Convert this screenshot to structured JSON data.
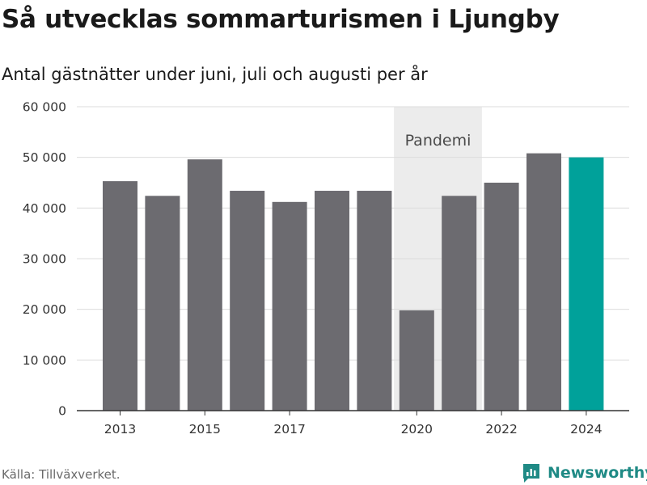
{
  "title": "Så utvecklas sommarturismen i Ljungby",
  "subtitle": "Antal gästnätter under juni, juli och augusti per år",
  "source": "Källa: Tillväxverket.",
  "logo": {
    "text": "Newsworthy",
    "color": "#1f8a85",
    "icon": "newsworthy-chart-icon"
  },
  "colors": {
    "bar": "#6c6b70",
    "highlight": "#00a19a",
    "band": "#ececec",
    "grid": "#dcdcdc",
    "axis": "#333333"
  },
  "chart_data": {
    "type": "bar",
    "title": "Så utvecklas sommarturismen i Ljungby",
    "subtitle": "Antal gästnätter under juni, juli och augusti per år",
    "categories": [
      "2013",
      "2014",
      "2015",
      "2016",
      "2017",
      "2018",
      "2019",
      "2020",
      "2021",
      "2022",
      "2023",
      "2024"
    ],
    "values": [
      45300,
      42400,
      49600,
      43400,
      41200,
      43400,
      43400,
      19800,
      42400,
      45000,
      50800,
      50000
    ],
    "highlight_category": "2024",
    "ylim": [
      0,
      60000
    ],
    "yticks": [
      0,
      10000,
      20000,
      30000,
      40000,
      50000,
      60000
    ],
    "ytick_labels": [
      "0",
      "10 000",
      "20 000",
      "30 000",
      "40 000",
      "50 000",
      "60 000"
    ],
    "xtick_labels": [
      "2013",
      "2015",
      "2017",
      "2020",
      "2022",
      "2024"
    ],
    "grid": true,
    "annotations": [
      {
        "type": "band",
        "label": "Pandemi",
        "from": "2020",
        "to": "2021"
      }
    ]
  }
}
